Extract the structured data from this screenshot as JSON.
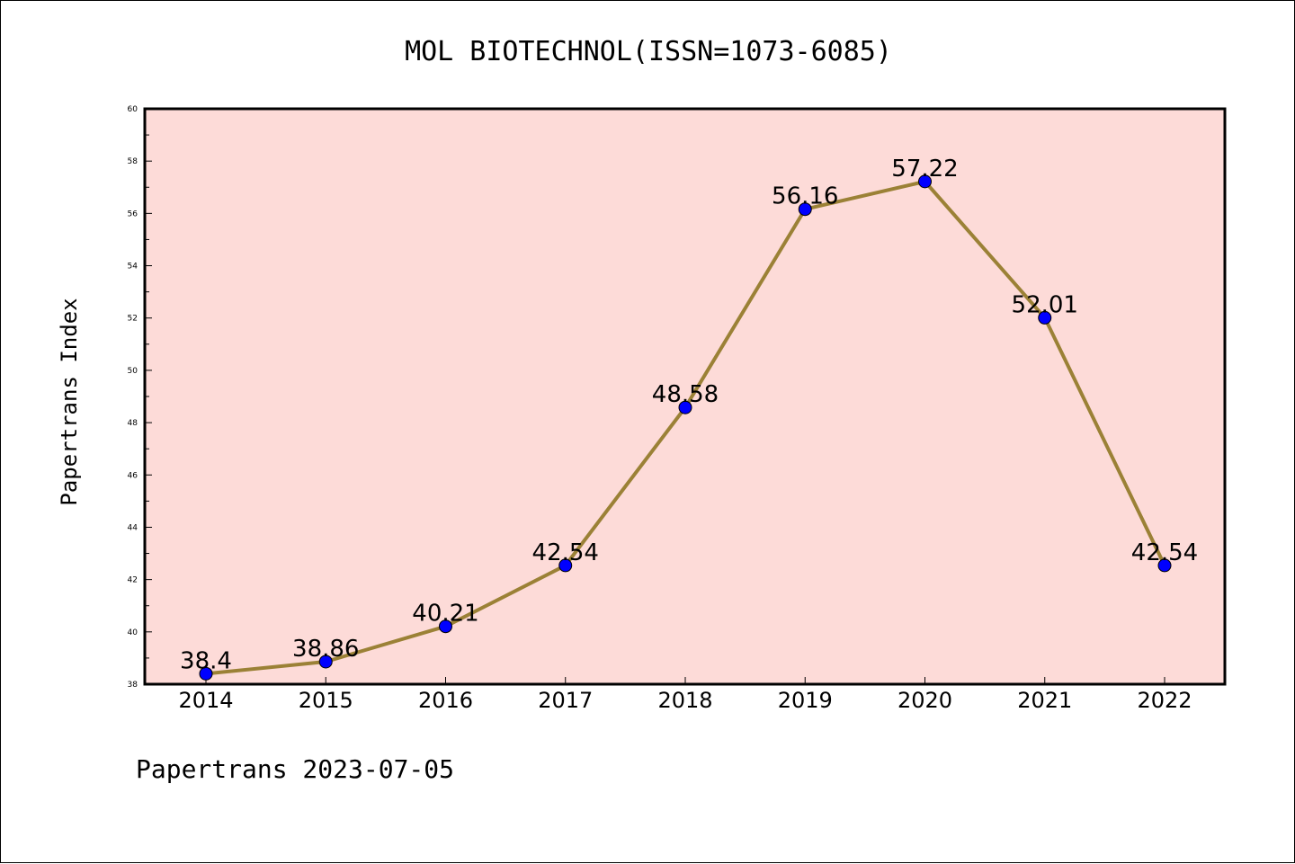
{
  "chart_data": {
    "type": "line",
    "title": "MOL BIOTECHNOL(ISSN=1073-6085)",
    "xlabel": "",
    "ylabel": "Papertrans Index",
    "categories": [
      "2014",
      "2015",
      "2016",
      "2017",
      "2018",
      "2019",
      "2020",
      "2021",
      "2022"
    ],
    "series": [
      {
        "values": [
          38.4,
          38.86,
          40.21,
          42.54,
          48.58,
          56.16,
          57.22,
          52.01,
          42.54
        ],
        "labels": [
          "38.4",
          "38.86",
          "40.21",
          "42.54",
          "48.58",
          "56.16",
          "57.22",
          "52.01",
          "42.54"
        ],
        "line_color": "#9b8136",
        "marker_color": "#0000ff"
      }
    ],
    "ylim": [
      38,
      60
    ],
    "yticks": [
      "38",
      "40",
      "42",
      "44",
      "46",
      "48",
      "50",
      "52",
      "54",
      "56",
      "58",
      "60"
    ],
    "plot_background": "#fddbd8",
    "grid": false,
    "legend": "none"
  },
  "footer": "Papertrans 2023-07-05"
}
